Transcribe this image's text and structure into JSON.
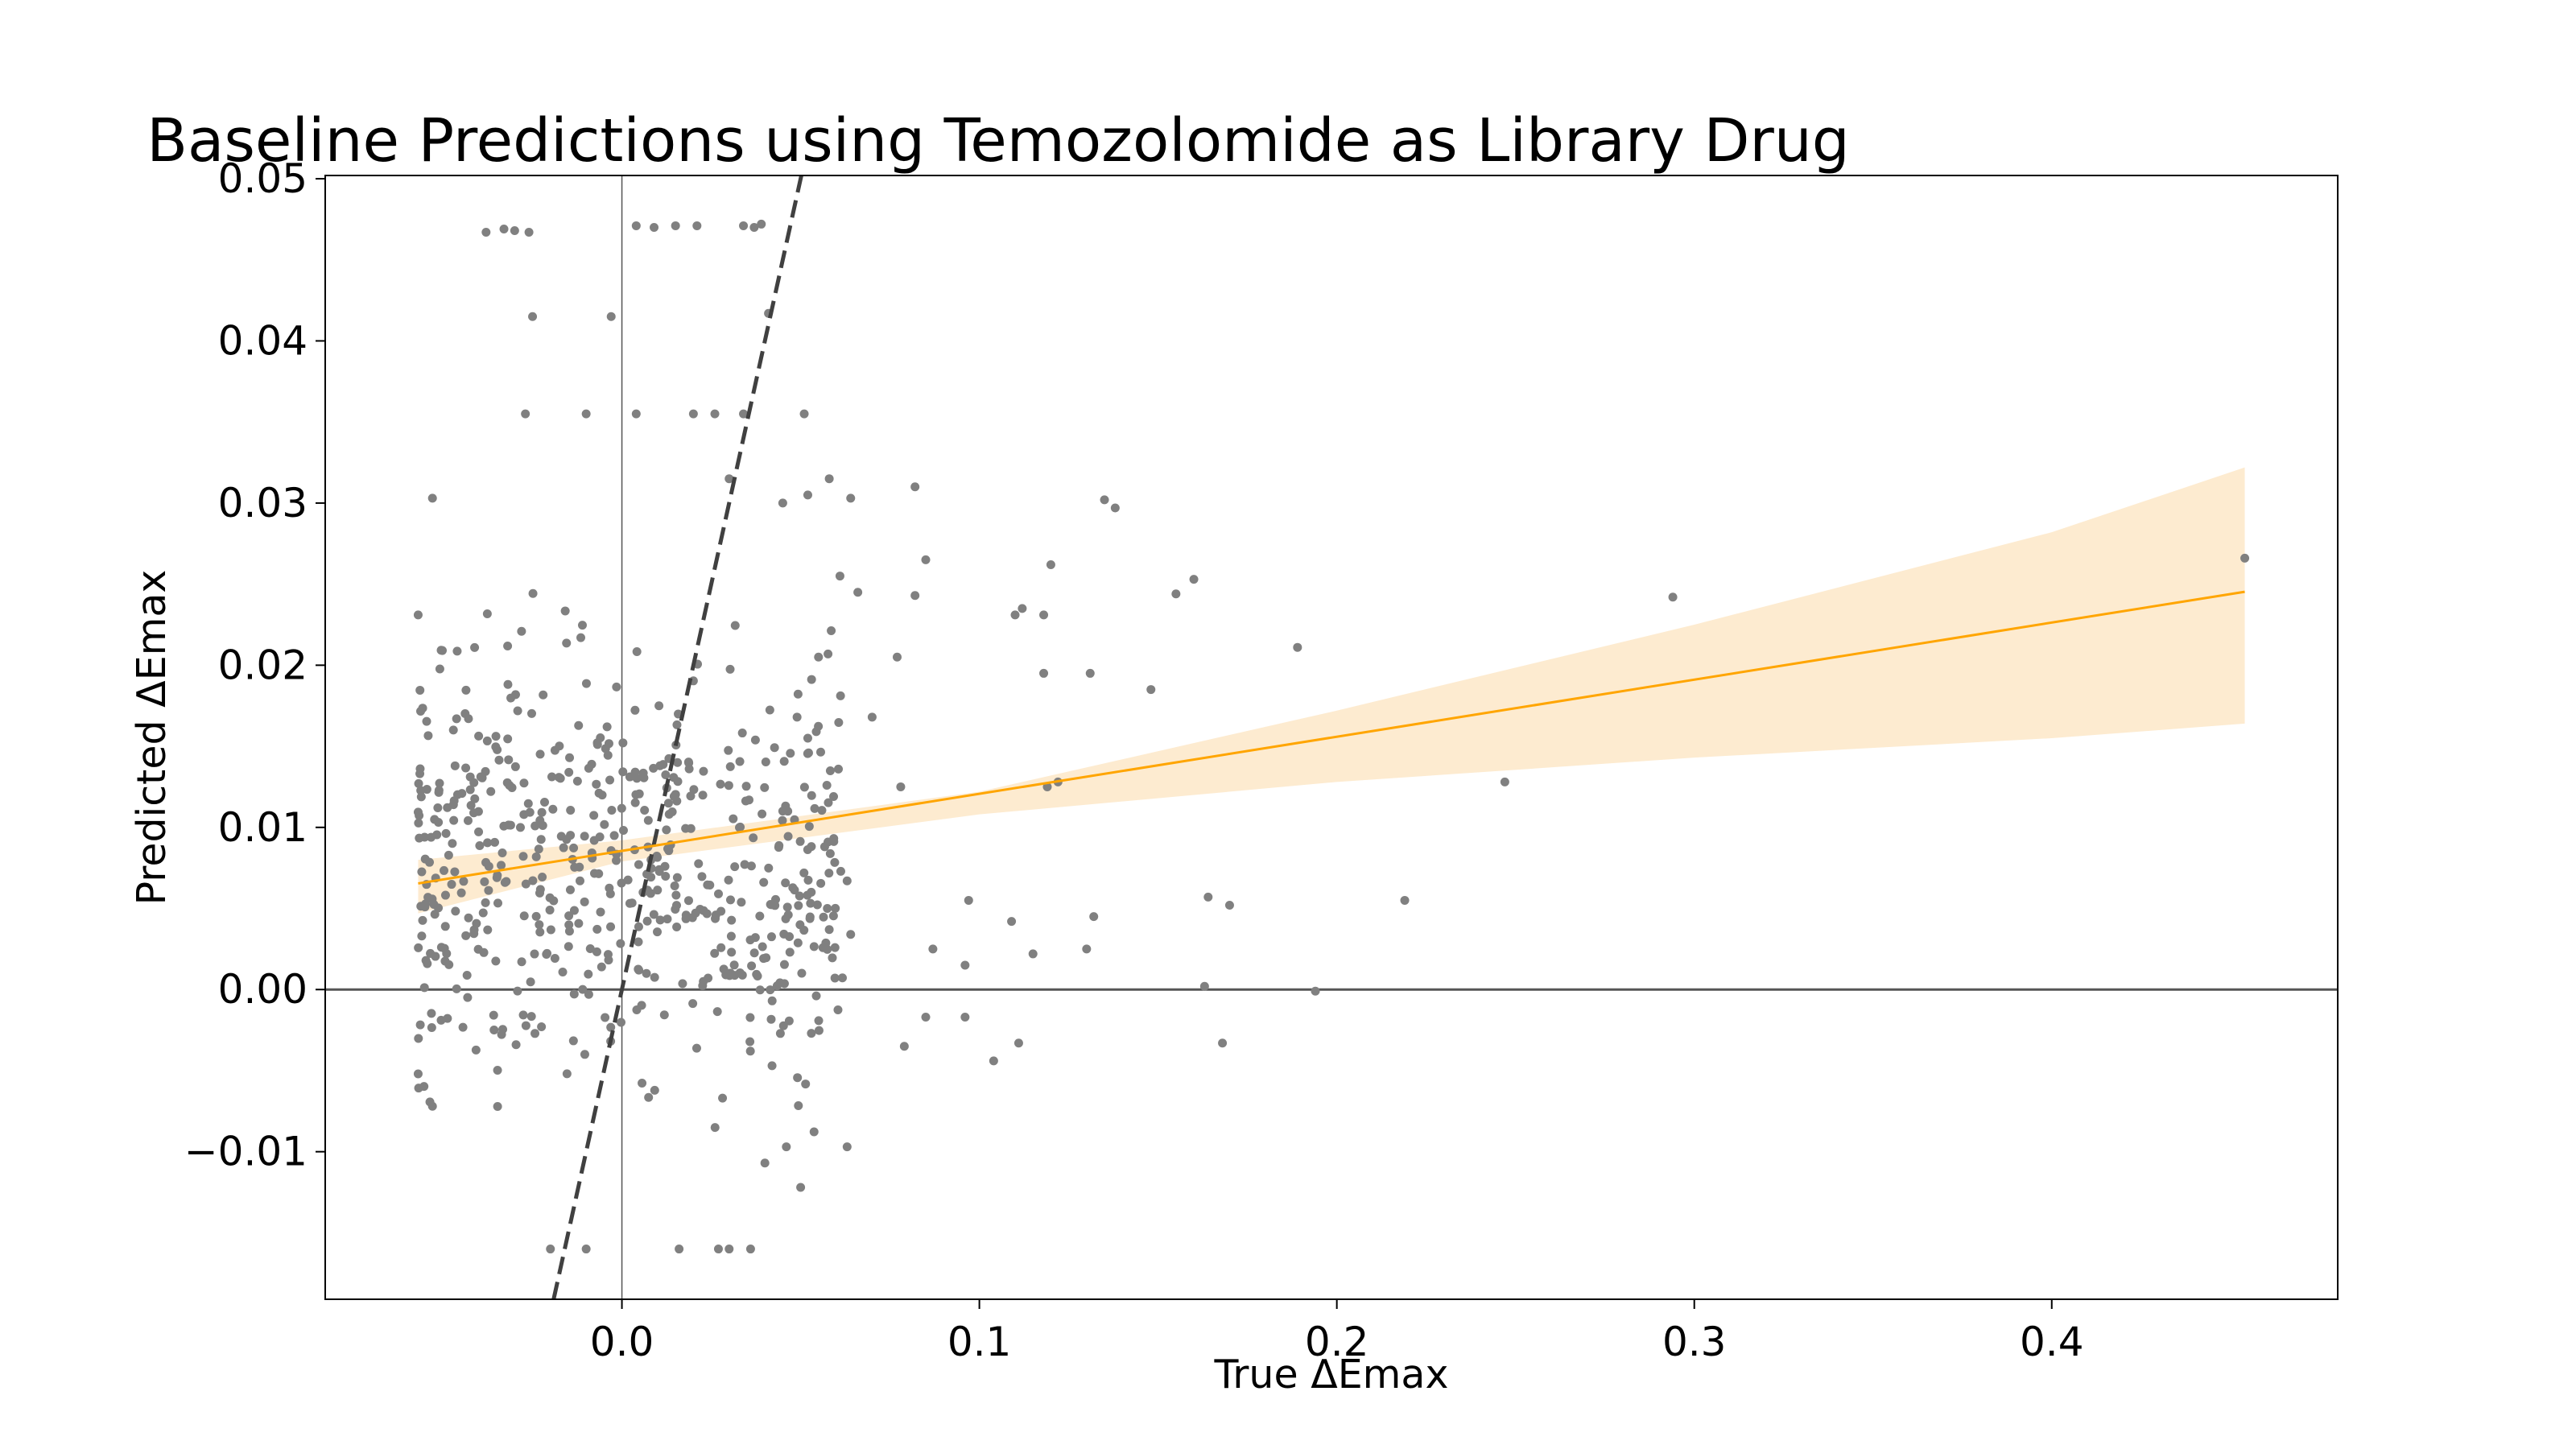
{
  "chart_data": {
    "type": "scatter",
    "title": "Baseline Predictions using Temozolomide as Library Drug",
    "xlabel": "True ΔEmax",
    "ylabel": "Predicted ΔEmax",
    "xlim": [
      -0.083,
      0.48
    ],
    "ylim": [
      -0.0191,
      0.0502
    ],
    "xticks": [
      0.0,
      0.1,
      0.2,
      0.3,
      0.4
    ],
    "xtick_labels": [
      "0.0",
      "0.1",
      "0.2",
      "0.3",
      "0.4"
    ],
    "yticks": [
      -0.01,
      0.0,
      0.01,
      0.02,
      0.03,
      0.04,
      0.05
    ],
    "ytick_labels": [
      "−0.01",
      "0.00",
      "0.01",
      "0.02",
      "0.03",
      "0.04",
      "0.05"
    ],
    "grid": false,
    "reference_lines": {
      "horizontal_y": 0.0,
      "vertical_x": 0.0,
      "color": "#555555"
    },
    "identity_line": {
      "slope": 1.0,
      "intercept": 0.0,
      "style": "dashed",
      "color": "#404040"
    },
    "regression": {
      "slope": 0.0352,
      "intercept": 0.00855,
      "x_range": [
        -0.057,
        0.454
      ],
      "ci_lower": [
        [
          -0.057,
          0.0047
        ],
        [
          0.0,
          0.0079
        ],
        [
          0.1,
          0.0108
        ],
        [
          0.2,
          0.0128
        ],
        [
          0.3,
          0.0143
        ],
        [
          0.4,
          0.0155
        ],
        [
          0.454,
          0.0164
        ]
      ],
      "ci_upper": [
        [
          -0.057,
          0.008
        ],
        [
          0.0,
          0.0092
        ],
        [
          0.1,
          0.0122
        ],
        [
          0.2,
          0.0172
        ],
        [
          0.3,
          0.0225
        ],
        [
          0.4,
          0.0282
        ],
        [
          0.454,
          0.0322
        ]
      ],
      "line_color": "#ffa500",
      "band_color": "#fdebd0"
    },
    "point_color": "#808080",
    "outliers": [
      [
        0.454,
        0.0266
      ],
      [
        0.294,
        0.0242
      ],
      [
        0.247,
        0.0128
      ],
      [
        0.219,
        0.0055
      ],
      [
        0.194,
        -0.0001
      ],
      [
        0.189,
        0.0211
      ],
      [
        0.168,
        -0.0033
      ],
      [
        0.17,
        0.0052
      ],
      [
        0.164,
        0.0057
      ],
      [
        0.163,
        0.0002
      ],
      [
        0.16,
        0.0253
      ],
      [
        0.155,
        0.0244
      ],
      [
        0.148,
        0.0185
      ],
      [
        0.138,
        0.0297
      ],
      [
        0.135,
        0.0302
      ],
      [
        0.132,
        0.0045
      ],
      [
        0.13,
        0.0025
      ],
      [
        0.131,
        0.0195
      ],
      [
        0.122,
        0.0128
      ],
      [
        0.119,
        0.0125
      ],
      [
        0.12,
        0.0262
      ],
      [
        0.118,
        0.0195
      ],
      [
        0.118,
        0.0231
      ],
      [
        0.112,
        0.0235
      ],
      [
        0.11,
        0.0231
      ],
      [
        0.115,
        0.0022
      ],
      [
        0.111,
        -0.0033
      ],
      [
        0.109,
        0.0042
      ],
      [
        0.104,
        -0.0044
      ],
      [
        0.097,
        0.0055
      ],
      [
        0.096,
        0.0015
      ],
      [
        0.096,
        -0.0017
      ],
      [
        0.087,
        0.0025
      ],
      [
        0.085,
        -0.0017
      ],
      [
        0.085,
        0.0265
      ],
      [
        0.082,
        0.031
      ],
      [
        0.082,
        0.0243
      ],
      [
        0.078,
        0.0125
      ],
      [
        0.079,
        -0.0035
      ],
      [
        0.077,
        0.0205
      ],
      [
        0.07,
        0.0168
      ],
      [
        0.066,
        0.0245
      ],
      [
        0.064,
        0.0303
      ],
      [
        0.061,
        0.0255
      ],
      [
        0.063,
        0.0067
      ],
      [
        0.064,
        0.0034
      ],
      [
        0.063,
        -0.0097
      ],
      [
        0.058,
        0.0037
      ],
      [
        0.058,
        0.0315
      ],
      [
        0.052,
        0.0305
      ],
      [
        0.051,
        0.0355
      ],
      [
        0.045,
        0.03
      ],
      [
        0.046,
        -0.0097
      ],
      [
        0.05,
        -0.0122
      ],
      [
        0.055,
        0.0205
      ],
      [
        0.049,
        0.0168
      ],
      [
        0.052,
        0.0155
      ],
      [
        0.045,
        0.011
      ],
      [
        0.047,
        0.0023
      ],
      [
        0.053,
        -0.0027
      ],
      [
        0.041,
        0.0417
      ],
      [
        0.037,
        0.047
      ],
      [
        0.039,
        0.0472
      ],
      [
        0.034,
        0.0471
      ],
      [
        0.034,
        0.0355
      ],
      [
        0.03,
        0.0315
      ],
      [
        0.03,
        -0.016
      ],
      [
        0.036,
        -0.016
      ],
      [
        0.04,
        -0.0107
      ],
      [
        0.042,
        -0.0047
      ],
      [
        0.027,
        -0.016
      ],
      [
        0.016,
        -0.016
      ],
      [
        -0.01,
        -0.016
      ],
      [
        -0.02,
        -0.016
      ],
      [
        -0.038,
        0.0467
      ],
      [
        -0.03,
        0.0468
      ],
      [
        -0.026,
        0.0467
      ],
      [
        -0.033,
        0.0469
      ],
      [
        -0.025,
        0.0415
      ],
      [
        -0.027,
        0.0355
      ],
      [
        -0.01,
        0.0355
      ],
      [
        -0.003,
        0.0415
      ],
      [
        0.004,
        0.0355
      ],
      [
        0.004,
        0.0471
      ],
      [
        0.009,
        0.047
      ],
      [
        0.015,
        0.0471
      ],
      [
        0.02,
        0.0355
      ],
      [
        0.026,
        0.0355
      ],
      [
        0.021,
        0.0471
      ],
      [
        -0.053,
        0.0303
      ],
      [
        -0.057,
        0.0231
      ],
      [
        -0.056,
        0.0033
      ],
      [
        -0.057,
        -0.0052
      ],
      [
        -0.053,
        -0.0072
      ]
    ],
    "cluster": {
      "count": 560,
      "x_range": [
        -0.057,
        0.062
      ],
      "y_range": [
        -0.0175,
        0.0315
      ]
    }
  }
}
